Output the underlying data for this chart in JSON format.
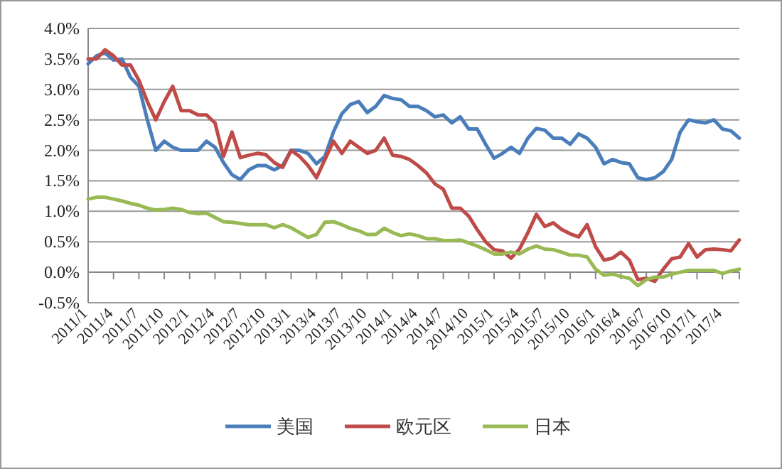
{
  "chart_data": {
    "type": "line",
    "categories": [
      "2011/1",
      null,
      null,
      "2011/4",
      null,
      null,
      "2011/7",
      null,
      null,
      "2011/10",
      null,
      null,
      "2012/1",
      null,
      null,
      "2012/4",
      null,
      null,
      "2012/7",
      null,
      null,
      "2012/10",
      null,
      null,
      "2013/1",
      null,
      null,
      "2013/4",
      null,
      null,
      "2013/7",
      null,
      null,
      "2013/10",
      null,
      null,
      "2014/1",
      null,
      null,
      "2014/4",
      null,
      null,
      "2014/7",
      null,
      null,
      "2014/10",
      null,
      null,
      "2015/1",
      null,
      null,
      "2015/4",
      null,
      null,
      "2015/7",
      null,
      null,
      "2015/10",
      null,
      null,
      "2016/1",
      null,
      null,
      "2016/4",
      null,
      null,
      "2016/7",
      null,
      null,
      "2016/10",
      null,
      null,
      "2017/1",
      null,
      null,
      "2017/4",
      null,
      null
    ],
    "series": [
      {
        "name": "美国",
        "color": "#4a7ebb",
        "values": [
          3.42,
          3.55,
          3.6,
          3.48,
          3.5,
          3.2,
          3.05,
          2.5,
          2.0,
          2.15,
          2.05,
          2.0,
          2.0,
          2.0,
          2.15,
          2.05,
          1.8,
          1.6,
          1.52,
          1.68,
          1.75,
          1.75,
          1.68,
          1.75,
          2.0,
          2.0,
          1.95,
          1.78,
          1.9,
          2.3,
          2.6,
          2.75,
          2.8,
          2.62,
          2.72,
          2.9,
          2.85,
          2.83,
          2.72,
          2.72,
          2.65,
          2.55,
          2.58,
          2.45,
          2.55,
          2.35,
          2.35,
          2.1,
          1.87,
          1.95,
          2.05,
          1.95,
          2.2,
          2.36,
          2.33,
          2.2,
          2.2,
          2.1,
          2.27,
          2.2,
          2.05,
          1.78,
          1.85,
          1.8,
          1.78,
          1.55,
          1.52,
          1.55,
          1.65,
          1.85,
          2.3,
          2.5,
          2.47,
          2.45,
          2.5,
          2.35,
          2.32,
          2.2
        ]
      },
      {
        "name": "欧元区",
        "color": "#be4b48",
        "values": [
          3.5,
          3.5,
          3.65,
          3.55,
          3.4,
          3.4,
          3.15,
          2.8,
          2.5,
          2.8,
          3.05,
          2.65,
          2.65,
          2.58,
          2.58,
          2.45,
          1.9,
          2.3,
          1.88,
          1.92,
          1.95,
          1.93,
          1.8,
          1.72,
          2.0,
          1.9,
          1.75,
          1.55,
          1.85,
          2.15,
          1.95,
          2.15,
          2.05,
          1.95,
          2.0,
          2.2,
          1.92,
          1.9,
          1.85,
          1.75,
          1.63,
          1.45,
          1.36,
          1.05,
          1.05,
          0.92,
          0.7,
          0.5,
          0.37,
          0.35,
          0.23,
          0.38,
          0.65,
          0.95,
          0.75,
          0.81,
          0.7,
          0.63,
          0.58,
          0.78,
          0.42,
          0.2,
          0.23,
          0.33,
          0.2,
          -0.12,
          -0.1,
          -0.15,
          0.05,
          0.22,
          0.25,
          0.47,
          0.25,
          0.37,
          0.38,
          0.37,
          0.35,
          0.53
        ]
      },
      {
        "name": "日本",
        "color": "#98b954",
        "values": [
          1.2,
          1.23,
          1.23,
          1.2,
          1.17,
          1.13,
          1.1,
          1.05,
          1.02,
          1.03,
          1.05,
          1.03,
          0.98,
          0.96,
          0.97,
          0.9,
          0.83,
          0.82,
          0.8,
          0.78,
          0.78,
          0.78,
          0.73,
          0.78,
          0.73,
          0.65,
          0.57,
          0.62,
          0.82,
          0.83,
          0.78,
          0.72,
          0.68,
          0.62,
          0.62,
          0.72,
          0.65,
          0.6,
          0.63,
          0.6,
          0.55,
          0.55,
          0.52,
          0.52,
          0.53,
          0.48,
          0.43,
          0.37,
          0.3,
          0.3,
          0.33,
          0.3,
          0.38,
          0.43,
          0.38,
          0.37,
          0.33,
          0.28,
          0.28,
          0.25,
          0.05,
          -0.05,
          -0.03,
          -0.07,
          -0.1,
          -0.22,
          -0.12,
          -0.08,
          -0.08,
          -0.03,
          0.0,
          0.03,
          0.03,
          0.03,
          0.03,
          -0.02,
          0.02,
          0.05
        ]
      }
    ],
    "ylim": [
      -0.5,
      4
    ],
    "yticks": [
      {
        "value": -0.5,
        "label": "-0.5%"
      },
      {
        "value": 0,
        "label": "0.0%"
      },
      {
        "value": 0.5,
        "label": "0.5%"
      },
      {
        "value": 1,
        "label": "1.0%"
      },
      {
        "value": 1.5,
        "label": "1.5%"
      },
      {
        "value": 2,
        "label": "2.0%"
      },
      {
        "value": 2.5,
        "label": "2.5%"
      },
      {
        "value": 3,
        "label": "3.0%"
      },
      {
        "value": 3.5,
        "label": "3.5%"
      },
      {
        "value": 4,
        "label": "4.0%"
      }
    ],
    "grid": "y",
    "legend": "bottom",
    "marker": "none",
    "line_style": "solid"
  }
}
